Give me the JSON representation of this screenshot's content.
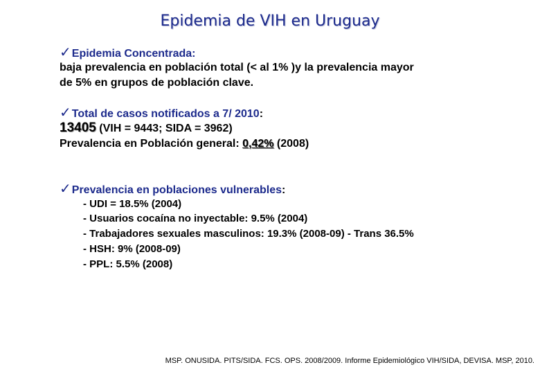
{
  "title": "Epidemia de VIH en Uruguay",
  "section1": {
    "heading": "Epidemia Concentrada:",
    "line1": "baja prevalencia en población total (< al 1% )y la prevalencia mayor",
    "line2": "de 5% en grupos de población clave."
  },
  "section2": {
    "heading": "Total de casos notificados a  7/ 2010",
    "heading_suffix": ":",
    "total": "13405",
    "breakdown": " (VIH = 9443; SIDA = 3962)",
    "prevalence_label": "Prevalencia en Población general: ",
    "prevalence_value": "0,42%",
    "prevalence_year": "  (2008)"
  },
  "section3": {
    "heading": "Prevalencia en poblaciones vulnerables",
    "heading_suffix": ":",
    "items": [
      "- UDI = 18.5% (2004)",
      "- Usuarios cocaína no inyectable: 9.5% (2004)",
      "- Trabajadores sexuales masculinos: 19.3% (2008-09) - Trans 36.5%",
      "- HSH: 9% (2008-09)",
      "- PPL: 5.5% (2008)"
    ]
  },
  "source": "MSP. ONUSIDA. PITS/SIDA. FCS. OPS. 2008/2009. Informe Epidemiológico VIH/SIDA, DEVISA. MSP, 2010.",
  "colors": {
    "heading": "#1c2a8c",
    "text": "#000000"
  },
  "icons": {
    "bullet": "checkmark-icon"
  }
}
